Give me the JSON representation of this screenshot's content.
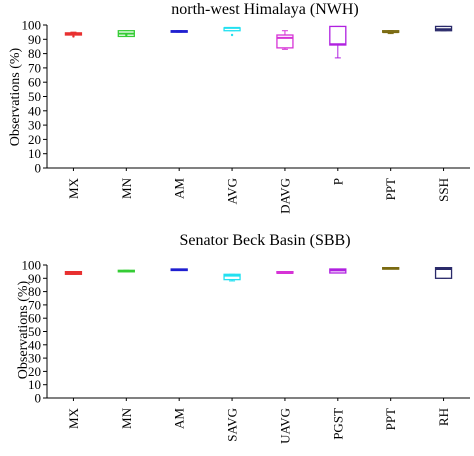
{
  "chart_data": [
    {
      "type": "box",
      "title": "north-west Himalaya (NWH)",
      "xlabel": "",
      "ylabel": "Observations (%)",
      "ylim": [
        0,
        100
      ],
      "yticks": [
        0,
        10,
        20,
        30,
        40,
        50,
        60,
        70,
        80,
        90,
        100
      ],
      "grid": false,
      "categories": [
        "MX",
        "MN",
        "AM",
        "AVG",
        "DAVG",
        "P",
        "PPT",
        "SSH"
      ],
      "colors": [
        "#e83030",
        "#35cc35",
        "#1f1fd0",
        "#22e0f0",
        "#d633d6",
        "#b020e0",
        "#7a6a10",
        "#2a2a6a"
      ],
      "boxes": [
        {
          "min": 93,
          "q1": 93,
          "median": 94,
          "q3": 94.5,
          "max": 95,
          "outliers": [
            92
          ]
        },
        {
          "min": 92,
          "q1": 92,
          "median": 94,
          "q3": 96,
          "max": 96,
          "outliers": [
            93
          ]
        },
        {
          "min": 95,
          "q1": 95,
          "median": 95.5,
          "q3": 96,
          "max": 96,
          "outliers": []
        },
        {
          "min": 96,
          "q1": 96,
          "median": 98,
          "q3": 98,
          "max": 98,
          "outliers": [
            93
          ]
        },
        {
          "min": 83,
          "q1": 84,
          "median": 91,
          "q3": 93,
          "max": 96,
          "outliers": []
        },
        {
          "min": 77,
          "q1": 86,
          "median": 86.5,
          "q3": 99,
          "max": 99,
          "outliers": []
        },
        {
          "min": 94,
          "q1": 95,
          "median": 95,
          "q3": 96,
          "max": 96,
          "outliers": []
        },
        {
          "min": 96,
          "q1": 96,
          "median": 97,
          "q3": 99,
          "max": 99,
          "outliers": []
        }
      ]
    },
    {
      "type": "box",
      "title": "Senator Beck Basin (SBB)",
      "xlabel": "",
      "ylabel": "Observations (%)",
      "ylim": [
        0,
        100
      ],
      "yticks": [
        0,
        10,
        20,
        30,
        40,
        50,
        60,
        70,
        80,
        90,
        100
      ],
      "grid": false,
      "categories": [
        "MX",
        "MN",
        "AM",
        "SAVG",
        "UAVG",
        "PGST",
        "PPT",
        "RH"
      ],
      "colors": [
        "#e83030",
        "#35cc35",
        "#1f1fd0",
        "#22e0f0",
        "#d633d6",
        "#b020e0",
        "#7a6a10",
        "#2a2a6a"
      ],
      "boxes": [
        {
          "min": 93,
          "q1": 93,
          "median": 94,
          "q3": 95,
          "max": 95,
          "outliers": []
        },
        {
          "min": 95,
          "q1": 95,
          "median": 95.5,
          "q3": 96,
          "max": 96,
          "outliers": []
        },
        {
          "min": 96,
          "q1": 96,
          "median": 96.5,
          "q3": 97,
          "max": 97,
          "outliers": []
        },
        {
          "min": 88,
          "q1": 89,
          "median": 92,
          "q3": 93,
          "max": 93,
          "outliers": []
        },
        {
          "min": 94,
          "q1": 94,
          "median": 94,
          "q3": 95,
          "max": 95,
          "outliers": []
        },
        {
          "min": 94,
          "q1": 94,
          "median": 96,
          "q3": 97,
          "max": 97,
          "outliers": []
        },
        {
          "min": 97,
          "q1": 97,
          "median": 97.5,
          "q3": 98,
          "max": 98,
          "outliers": []
        },
        {
          "min": 90,
          "q1": 90,
          "median": 97,
          "q3": 98,
          "max": 98,
          "outliers": []
        }
      ]
    }
  ]
}
